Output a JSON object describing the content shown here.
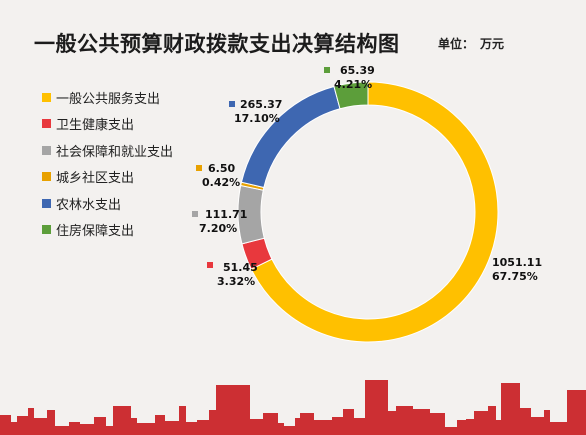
{
  "title": "一般公共预算财政拨款支出决算结构图",
  "unit_label": "单位：",
  "unit_value": "万元",
  "colors": {
    "gold": "#FFC000",
    "red": "#E8383D",
    "gray": "#A5A5A5",
    "orange": "#E8A100",
    "blue": "#3E67B1",
    "green": "#5C9E3A",
    "skyline": "#C8191E"
  },
  "chart_data": {
    "type": "pie",
    "donut": true,
    "title": "一般公共预算财政拨款支出决算结构图",
    "unit": "万元",
    "legend_position": "left",
    "slices": [
      {
        "name": "一般公共服务支出",
        "value": 1051.11,
        "value_label": "1051.11",
        "percent": "67.75%",
        "color": "#FFC000"
      },
      {
        "name": "卫生健康支出",
        "value": 51.45,
        "value_label": "51.45",
        "percent": "3.32%",
        "color": "#E8383D"
      },
      {
        "name": "社会保障和就业支出",
        "value": 111.71,
        "value_label": "111.71",
        "percent": "7.20%",
        "color": "#A5A5A5"
      },
      {
        "name": "城乡社区支出",
        "value": 6.5,
        "value_label": "6.50",
        "percent": "0.42%",
        "color": "#E8A100"
      },
      {
        "name": "农林水支出",
        "value": 265.37,
        "value_label": "265.37",
        "percent": "17.10%",
        "color": "#3E67B1"
      },
      {
        "name": "住房保障支出",
        "value": 65.39,
        "value_label": "65.39",
        "percent": "4.21%",
        "color": "#5C9E3A"
      }
    ]
  }
}
